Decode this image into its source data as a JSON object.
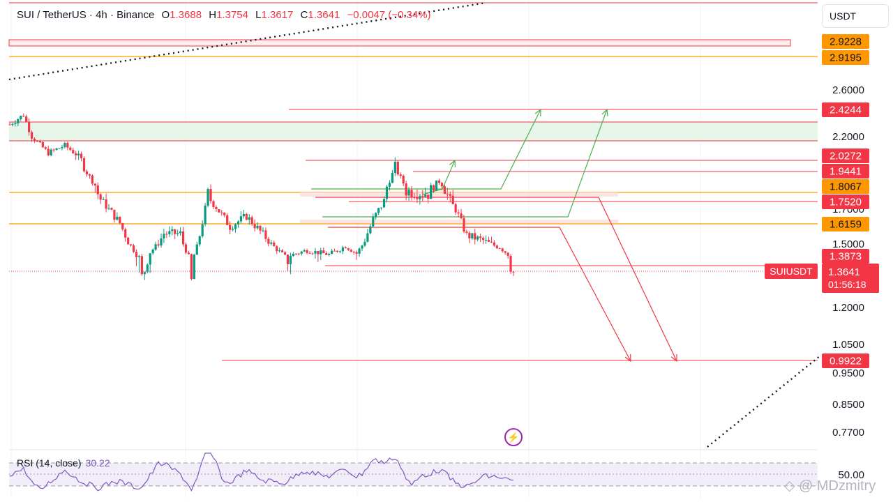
{
  "header": {
    "symbol": "SUI / TetherUS · 4h · Binance",
    "o_label": "O",
    "o_value": "1.3688",
    "h_label": "H",
    "h_value": "1.3754",
    "l_label": "L",
    "l_value": "1.3617",
    "c_label": "C",
    "c_value": "1.3641",
    "change": "−0.0047 (−0.34%)"
  },
  "currency_button": "USDT",
  "rsi": {
    "label": "RSI (14, close)",
    "value": "30.22",
    "axis_label": "50.00"
  },
  "watermark": "◇ @ MDzmitry",
  "colors": {
    "up": "#089981",
    "down": "#f23645",
    "orange": "#ff9800",
    "green_zone": "#e8f5e9",
    "rsi": "#7e57c2"
  },
  "chart_data": {
    "type": "candlestick",
    "symbol": "SUIUSDT",
    "timeframe": "4h",
    "y_axis_ticks": [
      "2.6000",
      "2.2000",
      "1.7000",
      "1.5000",
      "1.2000",
      "1.0500",
      "0.9500",
      "0.8500",
      "0.7700"
    ],
    "price_labels": [
      {
        "value": "2.9228",
        "color": "#ff9800",
        "text_color": "#131722"
      },
      {
        "value": "2.9195",
        "color": "#ff9800",
        "text_color": "#131722"
      },
      {
        "value": "2.4244",
        "color": "#f23645",
        "text_color": "#ffffff"
      },
      {
        "value": "2.0272",
        "color": "#f23645",
        "text_color": "#ffffff"
      },
      {
        "value": "1.9441",
        "color": "#f23645",
        "text_color": "#ffffff"
      },
      {
        "value": "1.8067",
        "color": "#ff9800",
        "text_color": "#131722"
      },
      {
        "value": "1.7520",
        "color": "#f23645",
        "text_color": "#ffffff"
      },
      {
        "value": "1.6159",
        "color": "#ff9800",
        "text_color": "#131722"
      },
      {
        "value": "1.3873",
        "color": "#f23645",
        "text_color": "#ffffff"
      },
      {
        "value": "0.9922",
        "color": "#f23645",
        "text_color": "#ffffff"
      }
    ],
    "last_price": {
      "symbol": "SUIUSDT",
      "value": "1.3641",
      "countdown": "01:56:18"
    },
    "candles_approx": [
      {
        "i": 0,
        "price": 2.3
      },
      {
        "i": 5,
        "price": 2.38
      },
      {
        "i": 8,
        "price": 2.2
      },
      {
        "i": 14,
        "price": 2.05
      },
      {
        "i": 20,
        "price": 2.12
      },
      {
        "i": 26,
        "price": 2.0
      },
      {
        "i": 32,
        "price": 1.78
      },
      {
        "i": 40,
        "price": 1.62
      },
      {
        "i": 48,
        "price": 1.34
      },
      {
        "i": 56,
        "price": 1.56
      },
      {
        "i": 62,
        "price": 1.56
      },
      {
        "i": 66,
        "price": 1.32
      },
      {
        "i": 72,
        "price": 1.78
      },
      {
        "i": 80,
        "price": 1.6
      },
      {
        "i": 86,
        "price": 1.66
      },
      {
        "i": 94,
        "price": 1.52
      },
      {
        "i": 100,
        "price": 1.38
      },
      {
        "i": 108,
        "price": 1.44
      },
      {
        "i": 116,
        "price": 1.4
      },
      {
        "i": 122,
        "price": 1.48
      },
      {
        "i": 126,
        "price": 1.41
      },
      {
        "i": 132,
        "price": 1.64
      },
      {
        "i": 136,
        "price": 1.75
      },
      {
        "i": 140,
        "price": 1.97
      },
      {
        "i": 144,
        "price": 1.79
      },
      {
        "i": 152,
        "price": 1.78
      },
      {
        "i": 156,
        "price": 1.85
      },
      {
        "i": 162,
        "price": 1.7
      },
      {
        "i": 166,
        "price": 1.55
      },
      {
        "i": 172,
        "price": 1.52
      },
      {
        "i": 178,
        "price": 1.47
      },
      {
        "i": 183,
        "price": 1.36
      }
    ],
    "rsi_note": "RSI oscillates around 50 level, current 30.22"
  }
}
